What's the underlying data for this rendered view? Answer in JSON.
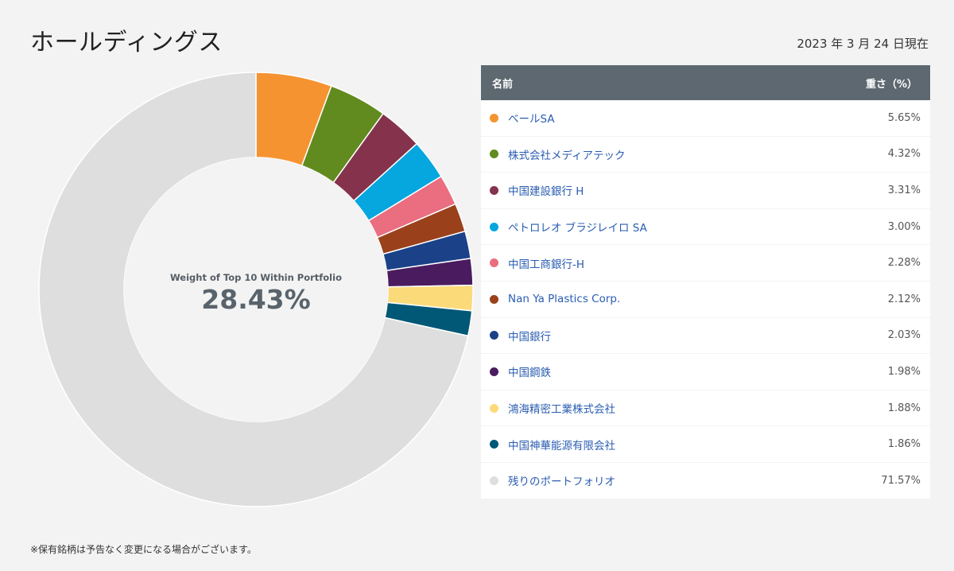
{
  "header": {
    "title": "ホールディングス",
    "as_of": "2023 年 3 月 24 日現在"
  },
  "table": {
    "col_name": "名前",
    "col_weight": "重さ（%）",
    "rows": [
      {
        "name": "ベールSA",
        "weight": "5.65%",
        "color": "#f59331"
      },
      {
        "name": "株式会社メディアテック",
        "weight": "4.32%",
        "color": "#618b1e"
      },
      {
        "name": "中国建設銀行 H",
        "weight": "3.31%",
        "color": "#85334c"
      },
      {
        "name": "ペトロレオ ブラジレイロ SA",
        "weight": "3.00%",
        "color": "#06a6df"
      },
      {
        "name": "中国工商銀行-H",
        "weight": "2.28%",
        "color": "#ea6d80"
      },
      {
        "name": "Nan Ya Plastics Corp.",
        "weight": "2.12%",
        "color": "#9a411c"
      },
      {
        "name": "中国銀行",
        "weight": "2.03%",
        "color": "#1b4288"
      },
      {
        "name": "中国鋼鉄",
        "weight": "1.98%",
        "color": "#4a1c5f"
      },
      {
        "name": "鴻海精密工業株式会社",
        "weight": "1.88%",
        "color": "#fbda7a"
      },
      {
        "name": "中国神華能源有限会社",
        "weight": "1.86%",
        "color": "#005876"
      },
      {
        "name": "残りのポートフォリオ",
        "weight": "71.57%",
        "color": "#dedede"
      }
    ]
  },
  "chart_data": {
    "type": "pie",
    "donut": true,
    "center_caption": "Weight of Top 10 Within Portfolio",
    "center_value": "28.43%",
    "categories": [
      "ベールSA",
      "株式会社メディアテック",
      "中国建設銀行 H",
      "ペトロレオ ブラジレイロ SA",
      "中国工商銀行-H",
      "Nan Ya Plastics Corp.",
      "中国銀行",
      "中国鋼鉄",
      "鴻海精密工業株式会社",
      "中国神華能源有限会社",
      "残りのポートフォリオ"
    ],
    "values": [
      5.65,
      4.32,
      3.31,
      3.0,
      2.28,
      2.12,
      2.03,
      1.98,
      1.88,
      1.86,
      71.57
    ],
    "colors": [
      "#f59331",
      "#618b1e",
      "#85334c",
      "#06a6df",
      "#ea6d80",
      "#9a411c",
      "#1b4288",
      "#4a1c5f",
      "#fbda7a",
      "#005876",
      "#dedede"
    ],
    "start_angle": "top, clockwise"
  },
  "footer": {
    "note": "※保有銘柄は予告なく変更になる場合がございます。"
  }
}
